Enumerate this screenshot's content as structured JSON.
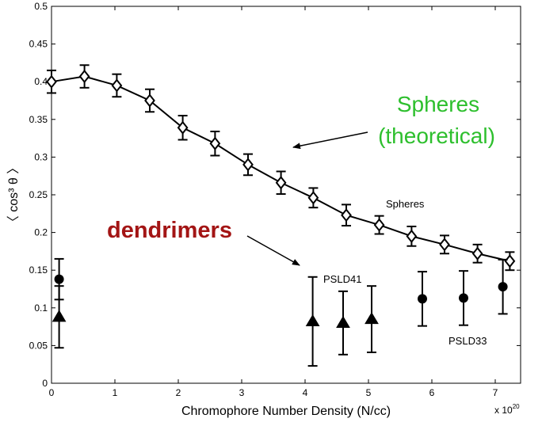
{
  "chart_data": {
    "type": "scatter",
    "xlabel": "Chromophore Number Density (N/cc)",
    "ylabel": "〈 cos³ θ 〉",
    "x_scale_label": "x 10",
    "x_scale_exponent": "20",
    "xlim": [
      0,
      7.4
    ],
    "ylim": [
      0,
      0.5
    ],
    "xticks": [
      0,
      1,
      2,
      3,
      4,
      5,
      6,
      7
    ],
    "yticks": [
      0,
      0.05,
      0.1,
      0.15,
      0.2,
      0.25,
      0.3,
      0.35,
      0.4,
      0.45,
      0.5
    ],
    "grid": false,
    "series": [
      {
        "name": "Spheres",
        "marker": "diamond",
        "line": true,
        "color": "#000000",
        "points": [
          {
            "x": 0.0,
            "y": 0.4,
            "err": 0.015
          },
          {
            "x": 0.52,
            "y": 0.407,
            "err": 0.015
          },
          {
            "x": 1.03,
            "y": 0.395,
            "err": 0.015
          },
          {
            "x": 1.55,
            "y": 0.375,
            "err": 0.015
          },
          {
            "x": 2.07,
            "y": 0.339,
            "err": 0.016
          },
          {
            "x": 2.58,
            "y": 0.318,
            "err": 0.016
          },
          {
            "x": 3.1,
            "y": 0.29,
            "err": 0.014
          },
          {
            "x": 3.62,
            "y": 0.266,
            "err": 0.015
          },
          {
            "x": 4.13,
            "y": 0.246,
            "err": 0.013
          },
          {
            "x": 4.65,
            "y": 0.223,
            "err": 0.014
          },
          {
            "x": 5.17,
            "y": 0.21,
            "err": 0.012
          },
          {
            "x": 5.68,
            "y": 0.195,
            "err": 0.013
          },
          {
            "x": 6.2,
            "y": 0.184,
            "err": 0.012
          },
          {
            "x": 6.72,
            "y": 0.172,
            "err": 0.012
          },
          {
            "x": 7.23,
            "y": 0.162,
            "err": 0.012
          }
        ]
      },
      {
        "name": "PSLD41",
        "marker": "triangle",
        "line": false,
        "color": "#000000",
        "points": [
          {
            "x": 0.12,
            "y": 0.088,
            "err": 0.041
          },
          {
            "x": 4.12,
            "y": 0.082,
            "err": 0.059
          },
          {
            "x": 4.6,
            "y": 0.08,
            "err": 0.042
          },
          {
            "x": 5.05,
            "y": 0.085,
            "err": 0.044
          }
        ]
      },
      {
        "name": "PSLD33",
        "marker": "circle",
        "line": false,
        "color": "#000000",
        "points": [
          {
            "x": 0.12,
            "y": 0.138,
            "err": 0.027
          },
          {
            "x": 5.85,
            "y": 0.112,
            "err": 0.036
          },
          {
            "x": 6.5,
            "y": 0.113,
            "err": 0.036
          },
          {
            "x": 7.12,
            "y": 0.128,
            "err": 0.036
          }
        ]
      }
    ],
    "annotations": [
      {
        "id": "spheres_label",
        "text": "Spheres",
        "color": "#000000"
      },
      {
        "id": "psld41_label",
        "text": "PSLD41",
        "color": "#000000"
      },
      {
        "id": "psld33_label",
        "text": "PSLD33",
        "color": "#000000"
      },
      {
        "id": "spheres_theory_line1",
        "text": "Spheres",
        "color": "#2dbf2d"
      },
      {
        "id": "spheres_theory_line2",
        "text": "(theoretical)",
        "color": "#2dbf2d"
      },
      {
        "id": "dendrimers_label",
        "text": "dendrimers",
        "color": "#a31515"
      }
    ]
  }
}
